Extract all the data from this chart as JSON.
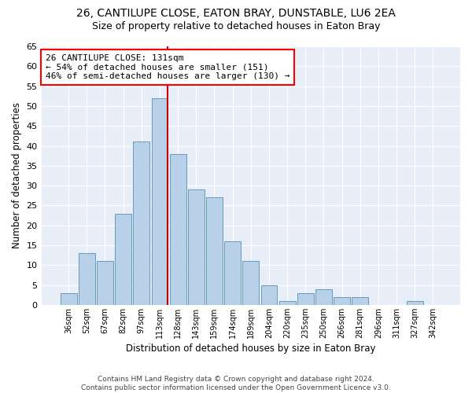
{
  "title1": "26, CANTILUPE CLOSE, EATON BRAY, DUNSTABLE, LU6 2EA",
  "title2": "Size of property relative to detached houses in Eaton Bray",
  "xlabel": "Distribution of detached houses by size in Eaton Bray",
  "ylabel": "Number of detached properties",
  "categories": [
    "36sqm",
    "52sqm",
    "67sqm",
    "82sqm",
    "97sqm",
    "113sqm",
    "128sqm",
    "143sqm",
    "159sqm",
    "174sqm",
    "189sqm",
    "204sqm",
    "220sqm",
    "235sqm",
    "250sqm",
    "266sqm",
    "281sqm",
    "296sqm",
    "311sqm",
    "327sqm",
    "342sqm"
  ],
  "values": [
    3,
    13,
    11,
    23,
    41,
    52,
    38,
    29,
    27,
    16,
    11,
    5,
    1,
    3,
    4,
    2,
    2,
    0,
    0,
    1,
    0
  ],
  "bar_color": "#b8d0e8",
  "bar_edge_color": "#6699bb",
  "annotation_title": "26 CANTILUPE CLOSE: 131sqm",
  "annotation_line1": "← 54% of detached houses are smaller (151)",
  "annotation_line2": "46% of semi-detached houses are larger (130) →",
  "box_color": "red",
  "vline_color": "#cc0000",
  "vline_index": 5,
  "ylim": [
    0,
    65
  ],
  "yticks": [
    0,
    5,
    10,
    15,
    20,
    25,
    30,
    35,
    40,
    45,
    50,
    55,
    60,
    65
  ],
  "footer1": "Contains HM Land Registry data © Crown copyright and database right 2024.",
  "footer2": "Contains public sector information licensed under the Open Government Licence v3.0.",
  "bg_color": "#ffffff",
  "plot_bg_color": "#e8eef7",
  "title1_fontsize": 10,
  "title2_fontsize": 9,
  "xlabel_fontsize": 8.5,
  "ylabel_fontsize": 8.5,
  "annotation_fontsize": 8,
  "footer_fontsize": 6.5
}
